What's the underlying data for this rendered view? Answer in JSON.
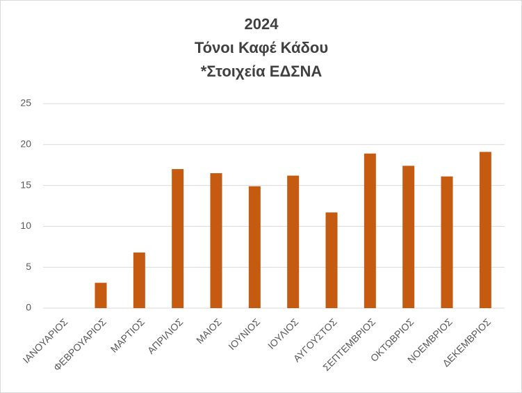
{
  "chart_data": {
    "type": "bar",
    "title": [
      "2024",
      "Τόνοι Καφέ Κάδου",
      "*Στοιχεία ΕΔΣΝΑ"
    ],
    "categories": [
      "ΙΑΝΟΥΑΡΙΟΣ",
      "ΦΕΒΡΟΥΑΡΙΟΣ",
      "ΜΑΡΤΙΟΣ",
      "ΑΠΡΙΛΙΟΣ",
      "ΜΑΙΟΣ",
      "ΙΟΥΝΙΟΣ",
      "ΙΟΥΛΙΟΣ",
      "ΑΥΓΟΥΣΤΟΣ",
      "ΣΕΠΤΕΜΒΡΙΟΣ",
      "ΟΚΤΩΒΡΙΟΣ",
      "ΝΟΕΜΒΡΙΟΣ",
      "ΔΕΚΕΜΒΡΙΟΣ"
    ],
    "values": [
      0,
      3.1,
      6.8,
      17.0,
      16.5,
      14.9,
      16.2,
      11.7,
      18.9,
      17.4,
      16.1,
      19.1
    ],
    "color": "#c55a11",
    "ylim": [
      0,
      25
    ],
    "yticks": [
      0,
      5,
      10,
      15,
      20,
      25
    ],
    "grid": true
  }
}
